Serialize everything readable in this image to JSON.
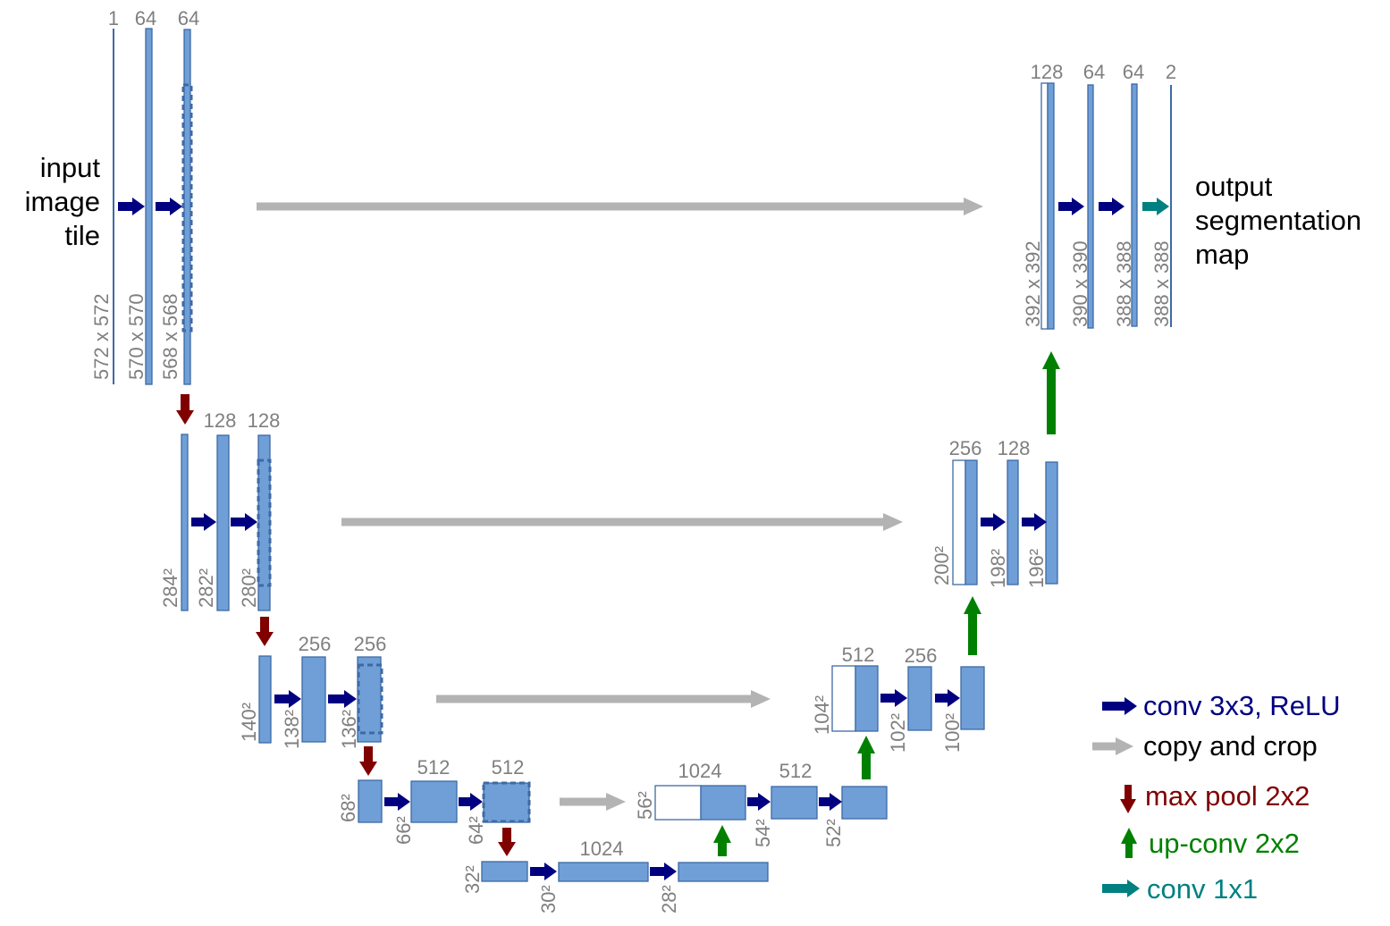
{
  "input_label": [
    "input",
    "image",
    "tile"
  ],
  "output_label": [
    "output",
    "segmentation",
    "map"
  ],
  "feature_maps": [
    {
      "channels": "1",
      "size": "572 x 572"
    },
    {
      "channels": "64",
      "size": "570 x 570"
    },
    {
      "channels": "64",
      "size": "568 x 568"
    },
    {
      "channels": "",
      "size": "284²"
    },
    {
      "channels": "128",
      "size": "282²"
    },
    {
      "channels": "128",
      "size": "280²"
    },
    {
      "channels": "",
      "size": "140²"
    },
    {
      "channels": "256",
      "size": "138²"
    },
    {
      "channels": "256",
      "size": "136²"
    },
    {
      "channels": "",
      "size": "68²"
    },
    {
      "channels": "512",
      "size": "66²"
    },
    {
      "channels": "512",
      "size": "64²"
    },
    {
      "channels": "",
      "size": "32²"
    },
    {
      "channels": "1024",
      "size": "30²"
    },
    {
      "channels": "",
      "size": "28²"
    },
    {
      "channels": "1024",
      "size": "56²"
    },
    {
      "channels": "512",
      "size": "54²"
    },
    {
      "channels": "",
      "size": "52²"
    },
    {
      "channels": "512",
      "size": "104²"
    },
    {
      "channels": "256",
      "size": "102²"
    },
    {
      "channels": "",
      "size": "100²"
    },
    {
      "channels": "256",
      "size": "200²"
    },
    {
      "channels": "128",
      "size": "198²"
    },
    {
      "channels": "",
      "size": "196²"
    },
    {
      "channels": "128",
      "size": "392 x 392"
    },
    {
      "channels": "64",
      "size": "390 x 390"
    },
    {
      "channels": "64",
      "size": "388 x 388"
    },
    {
      "channels": "2",
      "size": "388 x 388"
    }
  ],
  "legend": [
    {
      "label": "conv 3x3, ReLU",
      "color": "#000080"
    },
    {
      "label": "copy and crop",
      "color": "#000000",
      "arrow_color": "#b3b3b3"
    },
    {
      "label": "max pool 2x2",
      "color": "#800000"
    },
    {
      "label": "up-conv 2x2",
      "color": "#008000"
    },
    {
      "label": "conv 1x1",
      "color": "#008080"
    }
  ],
  "colors": {
    "feature_map_fill": "#6f9fd6",
    "feature_map_stroke": "#3d6aa6",
    "copy_arrow": "#b3b3b3"
  }
}
